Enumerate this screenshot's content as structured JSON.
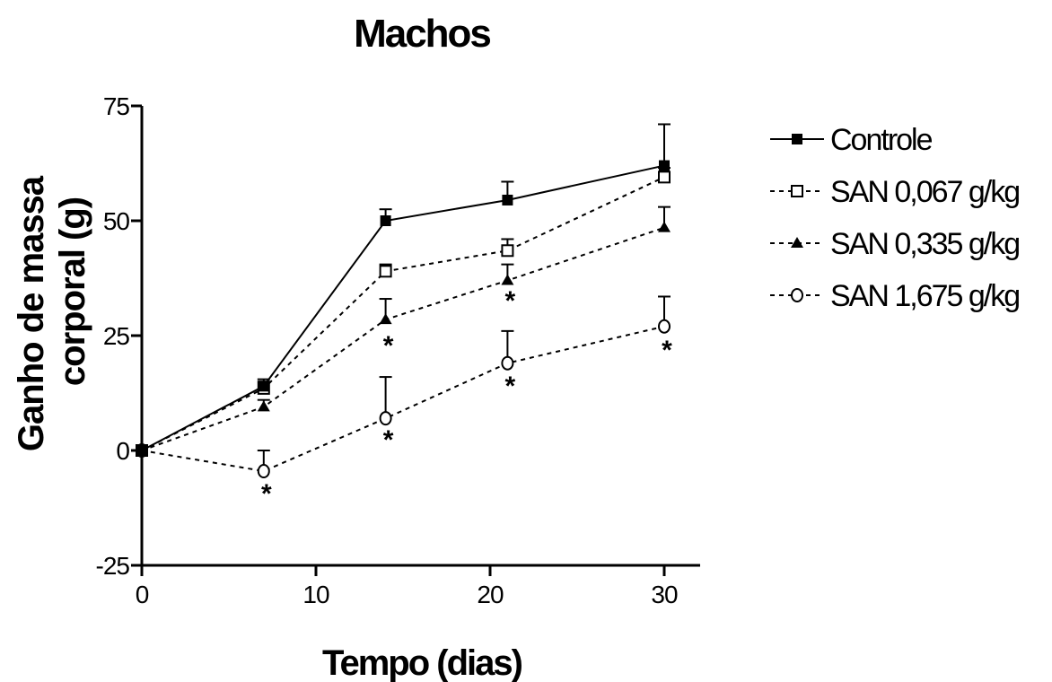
{
  "chart_data": {
    "type": "line",
    "title": "Machos",
    "xlabel": "Tempo (dias)",
    "ylabel_lines": [
      "Ganho de massa",
      "corporal (g)"
    ],
    "xlim": [
      0,
      33
    ],
    "ylim": [
      -25,
      75
    ],
    "xticks": [
      0,
      10,
      20,
      30
    ],
    "yticks": [
      -25,
      0,
      25,
      50,
      75
    ],
    "x": [
      0,
      7,
      14,
      21,
      30
    ],
    "legend_position": "right",
    "series": [
      {
        "name": "Controle",
        "marker": "filled-square",
        "line": "solid",
        "values": [
          0,
          14,
          50,
          54.5,
          62
        ],
        "errors": [
          0,
          1.5,
          2.5,
          4,
          9
        ]
      },
      {
        "name": "SAN 0,067 g/kg",
        "marker": "open-square",
        "line": "dashed",
        "values": [
          0,
          13.5,
          39,
          43.5,
          59.5
        ],
        "errors": [
          0,
          1.5,
          1.5,
          2.5,
          2
        ]
      },
      {
        "name": "SAN 0,335 g/kg",
        "marker": "filled-triangle",
        "line": "dashed",
        "values": [
          0,
          9.5,
          28.5,
          37,
          48.5
        ],
        "errors": [
          0,
          1.5,
          4.5,
          3.5,
          4.5
        ]
      },
      {
        "name": "SAN 1,675 g/kg",
        "marker": "open-circle",
        "line": "dashed",
        "values": [
          0,
          -4.5,
          7,
          19,
          27
        ],
        "errors": [
          0,
          4.5,
          9,
          7,
          6.5
        ]
      }
    ],
    "significance": [
      {
        "x": 7,
        "label": "*"
      },
      {
        "x": 14,
        "label": "*"
      },
      {
        "x": 14,
        "label": "*"
      },
      {
        "x": 21,
        "label": "*"
      },
      {
        "x": 21,
        "label": "*"
      },
      {
        "x": 30,
        "label": "*"
      }
    ]
  }
}
